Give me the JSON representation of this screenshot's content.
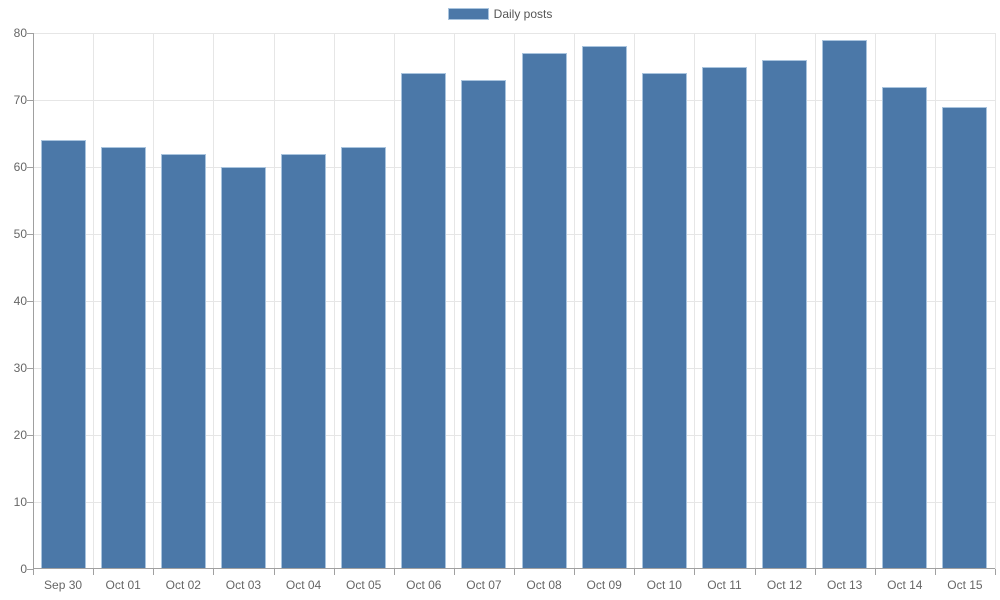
{
  "legend": {
    "label": "Daily posts"
  },
  "colors": {
    "bar": "#4b78a8",
    "bar_border": "#a9c4de",
    "grid": "#e6e6e6",
    "axis": "#a0a0a0",
    "tick_label": "#666666",
    "legend_label": "#555555",
    "background": "#ffffff"
  },
  "chart_data": {
    "type": "bar",
    "title": "",
    "xlabel": "",
    "ylabel": "",
    "categories": [
      "Sep 30",
      "Oct 01",
      "Oct 02",
      "Oct 03",
      "Oct 04",
      "Oct 05",
      "Oct 06",
      "Oct 07",
      "Oct 08",
      "Oct 09",
      "Oct 10",
      "Oct 11",
      "Oct 12",
      "Oct 13",
      "Oct 14",
      "Oct 15"
    ],
    "series": [
      {
        "name": "Daily posts",
        "values": [
          64,
          63,
          62,
          60,
          62,
          63,
          74,
          73,
          77,
          78,
          74,
          75,
          76,
          79,
          72,
          69
        ]
      }
    ],
    "ylim": [
      0,
      80
    ],
    "ytick_step": 10,
    "grid": true,
    "legend_position": "top-center"
  }
}
